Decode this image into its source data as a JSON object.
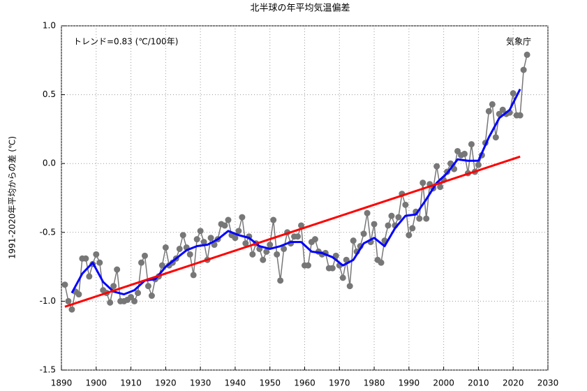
{
  "chart_data": {
    "type": "line",
    "title": "北半球の年平均気温偏差",
    "ylabel": "1991-2020年平均からの差 (℃)",
    "annotations": [
      "トレンド=0.83 (℃/100年)",
      "気象庁"
    ],
    "xlim": [
      1890,
      2030
    ],
    "ylim": [
      -1.5,
      1.0
    ],
    "xticks": [
      1890,
      1900,
      1910,
      1920,
      1930,
      1940,
      1950,
      1960,
      1970,
      1980,
      1990,
      2000,
      2010,
      2020,
      2030
    ],
    "yticks": [
      {
        "value": 1,
        "label": "1.0"
      },
      0.5,
      {
        "value": 0,
        "label": "0.0"
      },
      -0.5,
      {
        "value": -1,
        "label": "-1.0"
      },
      -1.5
    ],
    "grid": true,
    "series": [
      {
        "color": "#777777",
        "markers": true,
        "x": [
          1891,
          1892,
          1893,
          1894,
          1895,
          1896,
          1897,
          1898,
          1899,
          1900,
          1901,
          1902,
          1903,
          1904,
          1905,
          1906,
          1907,
          1908,
          1909,
          1910,
          1911,
          1912,
          1913,
          1914,
          1915,
          1916,
          1917,
          1918,
          1919,
          1920,
          1921,
          1922,
          1923,
          1924,
          1925,
          1926,
          1927,
          1928,
          1929,
          1930,
          1931,
          1932,
          1933,
          1934,
          1935,
          1936,
          1937,
          1938,
          1939,
          1940,
          1941,
          1942,
          1943,
          1944,
          1945,
          1946,
          1947,
          1948,
          1949,
          1950,
          1951,
          1952,
          1953,
          1954,
          1955,
          1956,
          1957,
          1958,
          1959,
          1960,
          1961,
          1962,
          1963,
          1964,
          1965,
          1966,
          1967,
          1968,
          1969,
          1970,
          1971,
          1972,
          1973,
          1974,
          1975,
          1976,
          1977,
          1978,
          1979,
          1980,
          1981,
          1982,
          1983,
          1984,
          1985,
          1986,
          1987,
          1988,
          1989,
          1990,
          1991,
          1992,
          1993,
          1994,
          1995,
          1996,
          1997,
          1998,
          1999,
          2000,
          2001,
          2002,
          2003,
          2004,
          2005,
          2006,
          2007,
          2008,
          2009,
          2010,
          2011,
          2012,
          2013,
          2014,
          2015,
          2016,
          2017,
          2018,
          2019,
          2020,
          2021,
          2022,
          2023,
          2024
        ],
        "values": [
          -0.88,
          -1.0,
          -1.06,
          -0.93,
          -0.95,
          -0.69,
          -0.69,
          -0.82,
          -0.73,
          -0.66,
          -0.72,
          -0.92,
          -0.94,
          -1.01,
          -0.89,
          -0.77,
          -1.0,
          -1.0,
          -0.99,
          -0.97,
          -1.0,
          -0.94,
          -0.72,
          -0.67,
          -0.89,
          -0.96,
          -0.84,
          -0.82,
          -0.74,
          -0.61,
          -0.74,
          -0.72,
          -0.69,
          -0.62,
          -0.52,
          -0.61,
          -0.66,
          -0.81,
          -0.55,
          -0.49,
          -0.57,
          -0.7,
          -0.54,
          -0.59,
          -0.55,
          -0.44,
          -0.45,
          -0.41,
          -0.52,
          -0.54,
          -0.49,
          -0.39,
          -0.58,
          -0.53,
          -0.66,
          -0.58,
          -0.62,
          -0.7,
          -0.64,
          -0.59,
          -0.41,
          -0.66,
          -0.85,
          -0.62,
          -0.5,
          -0.58,
          -0.53,
          -0.53,
          -0.45,
          -0.74,
          -0.74,
          -0.57,
          -0.55,
          -0.64,
          -0.66,
          -0.65,
          -0.76,
          -0.76,
          -0.67,
          -0.74,
          -0.83,
          -0.7,
          -0.89,
          -0.56,
          -0.64,
          -0.6,
          -0.51,
          -0.36,
          -0.57,
          -0.44,
          -0.7,
          -0.72,
          -0.56,
          -0.45,
          -0.38,
          -0.45,
          -0.39,
          -0.22,
          -0.3,
          -0.52,
          -0.47,
          -0.35,
          -0.4,
          -0.14,
          -0.4,
          -0.15,
          -0.18,
          -0.02,
          -0.17,
          -0.12,
          -0.06,
          0.0,
          -0.04,
          0.09,
          0.06,
          0.07,
          -0.07,
          0.14,
          -0.06,
          -0.01,
          0.06,
          0.15,
          0.38,
          0.43,
          0.19,
          0.36,
          0.39,
          0.36,
          0.37,
          0.51,
          0.35,
          0.35,
          0.68,
          0.79
        ]
      },
      {
        "color": "#0000ff",
        "markers": false,
        "x": [
          1893,
          1896,
          1899,
          1902,
          1905,
          1908,
          1911,
          1914,
          1917,
          1920,
          1923,
          1926,
          1929,
          1932,
          1935,
          1938,
          1941,
          1944,
          1947,
          1950,
          1953,
          1956,
          1959,
          1962,
          1965,
          1968,
          1971,
          1974,
          1977,
          1980,
          1983,
          1986,
          1989,
          1992,
          1995,
          1998,
          2001,
          2004,
          2007,
          2010,
          2013,
          2016,
          2019,
          2022
        ],
        "values": [
          -0.94,
          -0.8,
          -0.72,
          -0.86,
          -0.93,
          -0.95,
          -0.92,
          -0.85,
          -0.84,
          -0.75,
          -0.69,
          -0.63,
          -0.6,
          -0.59,
          -0.55,
          -0.49,
          -0.52,
          -0.54,
          -0.6,
          -0.62,
          -0.6,
          -0.57,
          -0.57,
          -0.64,
          -0.65,
          -0.68,
          -0.74,
          -0.7,
          -0.58,
          -0.54,
          -0.6,
          -0.47,
          -0.38,
          -0.37,
          -0.26,
          -0.14,
          -0.07,
          0.03,
          0.02,
          0.02,
          0.19,
          0.33,
          0.39,
          0.54
        ]
      },
      {
        "color": "#ff0000",
        "markers": false,
        "x": [
          1891,
          2022
        ],
        "values": [
          -1.04,
          0.05
        ]
      }
    ]
  }
}
